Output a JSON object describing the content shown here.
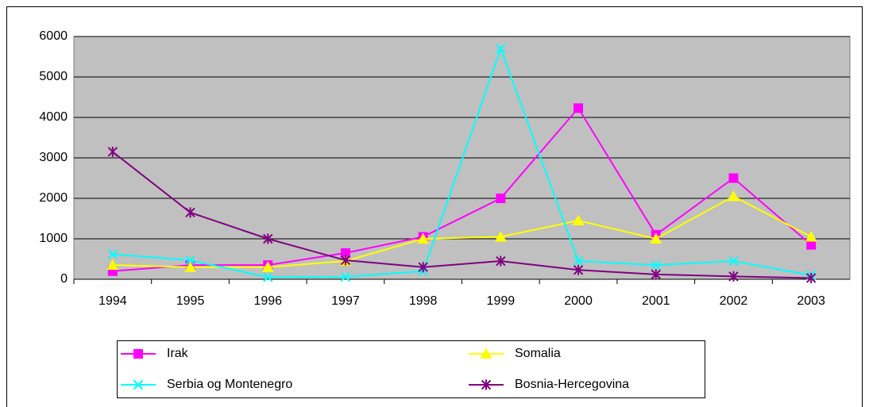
{
  "chart_data": {
    "type": "line",
    "categories": [
      "1994",
      "1995",
      "1996",
      "1997",
      "1998",
      "1999",
      "2000",
      "2001",
      "2002",
      "2003"
    ],
    "series": [
      {
        "name": "Irak",
        "color": "#ff00ff",
        "marker": "square",
        "values": [
          200,
          350,
          350,
          650,
          1050,
          2000,
          4230,
          1100,
          2500,
          850
        ]
      },
      {
        "name": "Somalia",
        "color": "#ffff00",
        "marker": "triangle",
        "values": [
          350,
          300,
          300,
          450,
          1000,
          1050,
          1450,
          1000,
          2050,
          1050
        ]
      },
      {
        "name": "Serbia og Montenegro",
        "color": "#00ffff",
        "marker": "x",
        "values": [
          620,
          470,
          50,
          60,
          200,
          5700,
          450,
          350,
          450,
          100
        ]
      },
      {
        "name": "Bosnia-Hercegovina",
        "color": "#800080",
        "marker": "asterisk",
        "values": [
          3150,
          1650,
          1000,
          470,
          300,
          450,
          230,
          120,
          70,
          30
        ]
      }
    ],
    "ylim": [
      0,
      6000
    ],
    "yticks": [
      0,
      1000,
      2000,
      3000,
      4000,
      5000,
      6000
    ],
    "grid": true,
    "legend": "bottom"
  }
}
